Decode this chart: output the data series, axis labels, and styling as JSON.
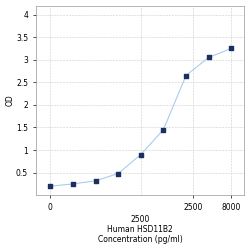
{
  "x": [
    31.25,
    62.5,
    125,
    250,
    500,
    1000,
    2000,
    4000,
    8000
  ],
  "y": [
    0.2,
    0.25,
    0.32,
    0.48,
    0.9,
    1.45,
    2.65,
    3.05,
    3.25
  ],
  "line_color": "#aaccee",
  "marker_color": "#1a3060",
  "marker_size": 12,
  "xlabel_line1": "2500",
  "xlabel_line2": "Human HSD11B2",
  "xlabel_line3": "Concentration (pg/ml)",
  "ylabel": "OD",
  "ylim": [
    0.0,
    4.2
  ],
  "xlim_log": [
    1.3,
    4.0
  ],
  "yticks": [
    0.5,
    1.0,
    1.5,
    2.0,
    2.5,
    3.0,
    3.5,
    4.0
  ],
  "ytick_labels": [
    "0.5",
    "1",
    "1.5",
    "2",
    "2.5",
    "3",
    "3.5",
    "4"
  ],
  "xtick_positions": [
    31.25,
    2500,
    8000
  ],
  "xtick_labels": [
    "0",
    "2500",
    "8000"
  ],
  "grid_color": "#cccccc",
  "background_color": "#ffffff",
  "font_size": 5.5
}
